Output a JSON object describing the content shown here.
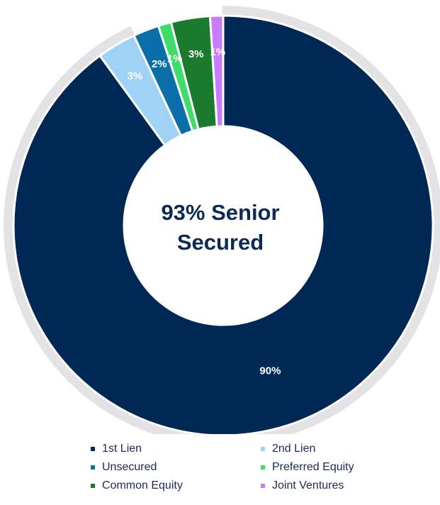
{
  "chart_data": {
    "type": "pie",
    "title": "",
    "center_label": [
      "93% Senior",
      "Secured"
    ],
    "series": [
      {
        "name": "1st Lien",
        "value": 90,
        "label": "90%",
        "color": "#002855"
      },
      {
        "name": "2nd Lien",
        "value": 3,
        "label": "3%",
        "color": "#9ed3f5"
      },
      {
        "name": "Unsecured",
        "value": 2,
        "label": "2%",
        "color": "#0a6ea8"
      },
      {
        "name": "Preferred Equity",
        "value": 1,
        "label": "1%",
        "color": "#3ddc6b"
      },
      {
        "name": "Common Equity",
        "value": 3,
        "label": "3%",
        "color": "#1a7a2e"
      },
      {
        "name": "Joint Ventures",
        "value": 1,
        "label": "1%",
        "color": "#c77dff"
      }
    ],
    "highlight_ring": {
      "label": "93% Senior Secured",
      "series": [
        "1st Lien",
        "2nd Lien"
      ],
      "color": "#e3e3e6"
    },
    "legend": {
      "position": "bottom",
      "columns": 2
    }
  }
}
